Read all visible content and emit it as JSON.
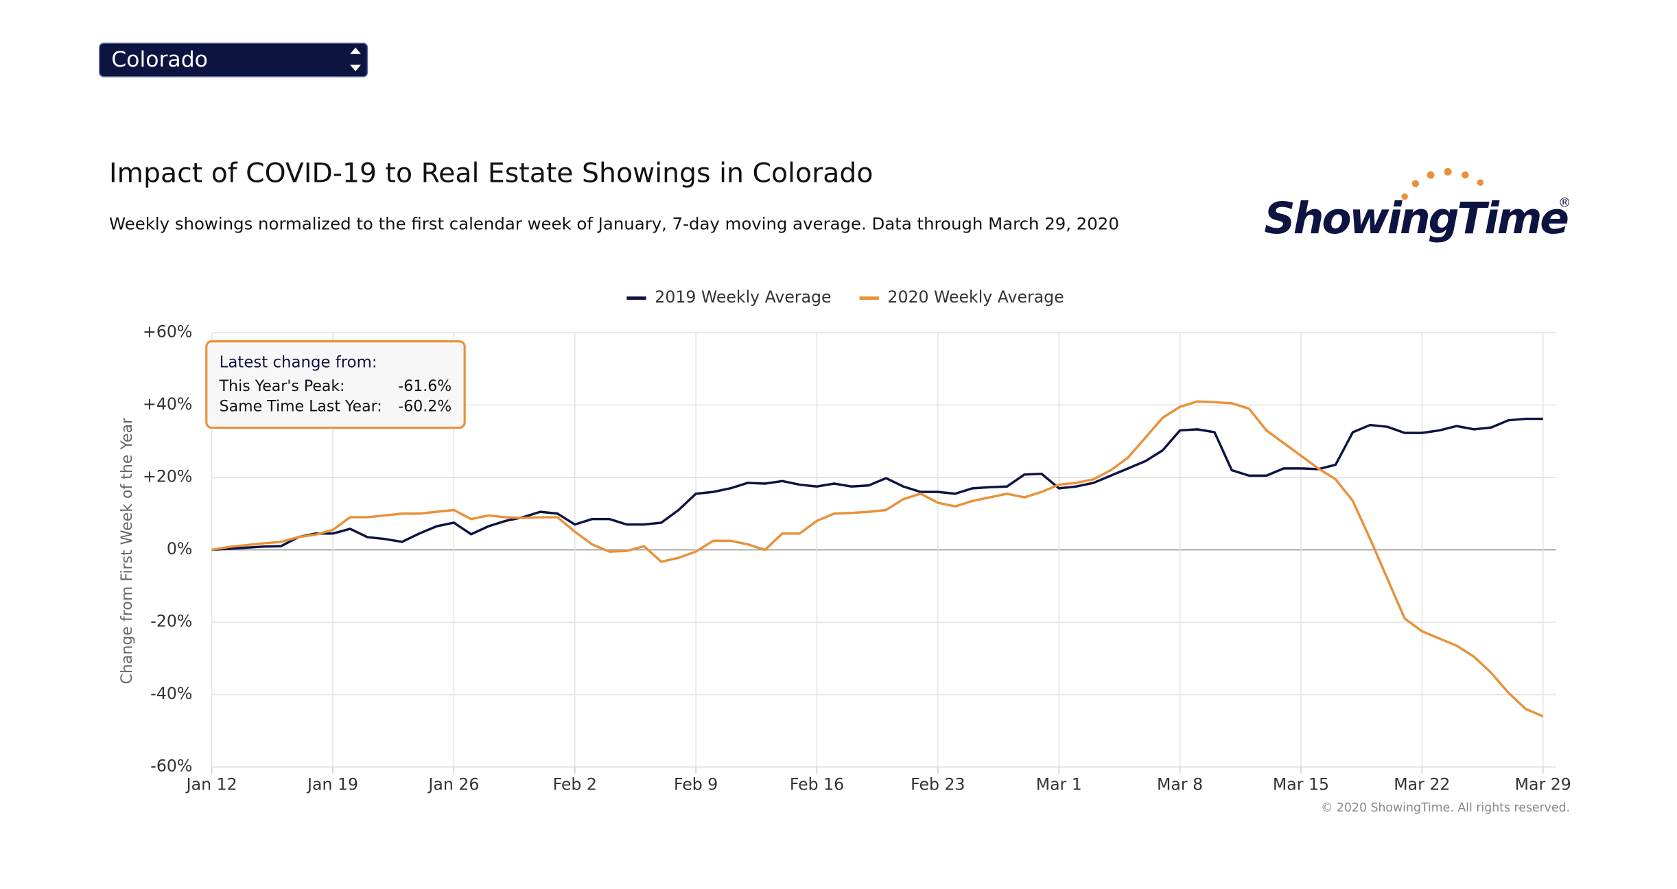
{
  "chart_data": {
    "type": "line",
    "selector": "Colorado",
    "title": "Impact of COVID-19 to Real Estate Showings in Colorado",
    "subtitle": "Weekly showings normalized to the first calendar week of January, 7-day moving average. Data through March 29, 2020",
    "logo": "ShowingTime",
    "logo_mark": "®",
    "y_label": "Change from First Week of the Year",
    "copyright": "© 2020 ShowingTime. All rights reserved.",
    "annotation": {
      "title": "Latest change from:",
      "rows": [
        {
          "label": "This Year's Peak:",
          "value": "-61.6%"
        },
        {
          "label": "Same Time Last Year:",
          "value": "-60.2%"
        }
      ]
    },
    "x": [
      0,
      1,
      2,
      3,
      4,
      5,
      6,
      7,
      8,
      9,
      10,
      11,
      12,
      13,
      14,
      15,
      16,
      17,
      18,
      19,
      20,
      21,
      22,
      23,
      24,
      25,
      26,
      27,
      28,
      29,
      30,
      31,
      32,
      33,
      34,
      35,
      36,
      37,
      38,
      39,
      40,
      41,
      42,
      43,
      44,
      45,
      46,
      47,
      48,
      49,
      50,
      51,
      52,
      53,
      54,
      55,
      56,
      57,
      58,
      59,
      60,
      61,
      62,
      63,
      64,
      65,
      66,
      67,
      68,
      69,
      70,
      71,
      72,
      73,
      74,
      75,
      76,
      77
    ],
    "xlim": [
      0,
      77
    ],
    "xticks": [
      {
        "value": 0,
        "label": "Jan 12"
      },
      {
        "value": 7,
        "label": "Jan 19"
      },
      {
        "value": 14,
        "label": "Jan 26"
      },
      {
        "value": 21,
        "label": "Feb 2"
      },
      {
        "value": 28,
        "label": "Feb 9"
      },
      {
        "value": 35,
        "label": "Feb 16"
      },
      {
        "value": 42,
        "label": "Feb 23"
      },
      {
        "value": 49,
        "label": "Mar 1"
      },
      {
        "value": 56,
        "label": "Mar 8"
      },
      {
        "value": 63,
        "label": "Mar 15"
      },
      {
        "value": 70,
        "label": "Mar 22"
      },
      {
        "value": 77,
        "label": "Mar 29"
      }
    ],
    "ylim": [
      -60,
      60
    ],
    "yticks": [
      {
        "value": -60,
        "label": "-60%"
      },
      {
        "value": -40,
        "label": "-40%"
      },
      {
        "value": -20,
        "label": "-20%"
      },
      {
        "value": 0,
        "label": "0%"
      },
      {
        "value": 20,
        "label": "+20%"
      },
      {
        "value": 40,
        "label": "+40%"
      },
      {
        "value": 60,
        "label": "+60%"
      }
    ],
    "grid": true,
    "legend": "top",
    "series": [
      {
        "name": "2019 Weekly Average",
        "color": "#0d1442",
        "values": [
          0,
          0.3,
          0.6,
          0.9,
          1,
          3.5,
          4.5,
          4.5,
          5.8,
          3.5,
          3,
          2.2,
          4.5,
          6.5,
          7.5,
          4.3,
          6.5,
          8,
          9,
          10.5,
          10,
          7,
          8.5,
          8.5,
          7,
          7,
          7.5,
          11,
          15.5,
          16,
          17,
          18.5,
          18.3,
          19,
          18,
          17.5,
          18.3,
          17.5,
          17.8,
          19.8,
          17.5,
          16,
          16,
          15.5,
          17,
          17.3,
          17.5,
          20.8,
          21,
          17,
          17.5,
          18.5,
          20.5,
          22.5,
          24.5,
          27.5,
          33,
          33.3,
          32.5,
          22,
          20.5,
          20.5,
          22.5,
          22.5,
          22.3,
          23.5,
          32.5,
          34.5,
          34,
          32.3,
          32.3,
          33,
          34.2,
          33.3,
          33.8,
          35.8,
          36.2,
          36.2
        ]
      },
      {
        "name": "2020 Weekly Average",
        "color": "#e8913a",
        "values": [
          0,
          0.8,
          1.3,
          1.8,
          2.2,
          3.5,
          4.2,
          5.5,
          9,
          9,
          9.5,
          10,
          10,
          10.5,
          11,
          8.5,
          9.5,
          9,
          8.8,
          9,
          9,
          5,
          1.5,
          -0.5,
          -0.3,
          1,
          -3.3,
          -2.2,
          -0.5,
          2.5,
          2.5,
          1.5,
          0,
          4.5,
          4.5,
          8,
          10,
          10.2,
          10.5,
          11,
          14,
          15.5,
          13,
          12,
          13.5,
          14.5,
          15.5,
          14.5,
          16,
          18,
          18.5,
          19.5,
          22,
          25.5,
          31,
          36.5,
          39.5,
          41,
          40.8,
          40.5,
          39,
          33,
          29.5,
          26,
          22.5,
          19.5,
          13.5,
          3,
          -8,
          -19,
          -22.5,
          -24.5,
          -26.5,
          -29.5,
          -34,
          -39.5,
          -44,
          -46
        ]
      }
    ]
  }
}
